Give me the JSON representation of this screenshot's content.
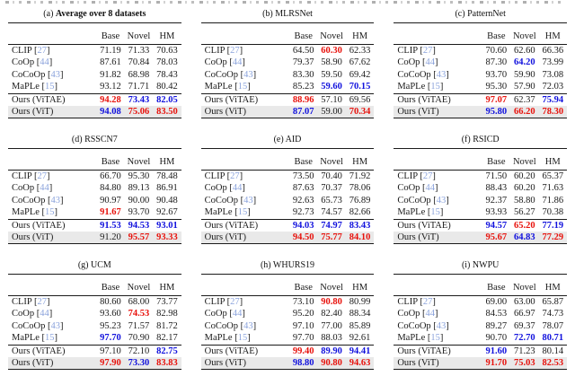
{
  "colors": {
    "best": "#e8120c",
    "second": "#1111dd",
    "citation": "#8ba3dc",
    "highlight_bg": "#e9e9e9",
    "rule": "#1b1b1b"
  },
  "columns": [
    "Base",
    "Novel",
    "HM"
  ],
  "tables": [
    {
      "label": "(a)",
      "title": "Average over 8 datasets",
      "bold_title": true,
      "rows": [
        {
          "m": "CLIP",
          "cite": "27",
          "v": [
            "71.19",
            "71.33",
            "70.63"
          ],
          "c": [
            null,
            null,
            null
          ]
        },
        {
          "m": "CoOp",
          "cite": "44",
          "v": [
            "87.61",
            "70.84",
            "78.03"
          ],
          "c": [
            null,
            null,
            null
          ]
        },
        {
          "m": "CoCoOp",
          "cite": "43",
          "v": [
            "91.82",
            "68.98",
            "78.43"
          ],
          "c": [
            null,
            null,
            null
          ]
        },
        {
          "m": "MaPLe",
          "cite": "15",
          "v": [
            "93.12",
            "71.71",
            "80.42"
          ],
          "c": [
            null,
            null,
            null
          ]
        },
        {
          "m": "Ours (ViTAE)",
          "v": [
            "94.28",
            "73.43",
            "82.05"
          ],
          "c": [
            "r",
            "b",
            "b"
          ],
          "sep": true
        },
        {
          "m": "Ours (ViT)",
          "v": [
            "94.08",
            "75.06",
            "83.50"
          ],
          "c": [
            "b",
            "r",
            "r"
          ],
          "hl": true
        }
      ]
    },
    {
      "label": "(b)",
      "title": "MLRSNet",
      "rows": [
        {
          "m": "CLIP",
          "cite": "27",
          "v": [
            "64.50",
            "60.30",
            "62.33"
          ],
          "c": [
            null,
            "r",
            null
          ]
        },
        {
          "m": "CoOp",
          "cite": "44",
          "v": [
            "79.37",
            "58.90",
            "67.62"
          ],
          "c": [
            null,
            null,
            null
          ]
        },
        {
          "m": "CoCoOp",
          "cite": "43",
          "v": [
            "83.30",
            "59.50",
            "69.42"
          ],
          "c": [
            null,
            null,
            null
          ]
        },
        {
          "m": "MaPLe",
          "cite": "15",
          "v": [
            "85.23",
            "59.60",
            "70.15"
          ],
          "c": [
            null,
            "b",
            "b"
          ]
        },
        {
          "m": "Ours (ViTAE)",
          "v": [
            "88.96",
            "57.10",
            "69.56"
          ],
          "c": [
            "r",
            null,
            null
          ],
          "sep": true
        },
        {
          "m": "Ours (ViT)",
          "v": [
            "87.07",
            "59.00",
            "70.34"
          ],
          "c": [
            "b",
            null,
            "r"
          ],
          "hl": true
        }
      ]
    },
    {
      "label": "(c)",
      "title": "PatternNet",
      "rows": [
        {
          "m": "CLIP",
          "cite": "27",
          "v": [
            "70.60",
            "62.60",
            "66.36"
          ],
          "c": [
            null,
            null,
            null
          ]
        },
        {
          "m": "CoOp",
          "cite": "44",
          "v": [
            "87.30",
            "64.20",
            "73.99"
          ],
          "c": [
            null,
            "b",
            null
          ]
        },
        {
          "m": "CoCoOp",
          "cite": "43",
          "v": [
            "93.70",
            "59.90",
            "73.08"
          ],
          "c": [
            null,
            null,
            null
          ]
        },
        {
          "m": "MaPLe",
          "cite": "15",
          "v": [
            "95.30",
            "57.90",
            "72.03"
          ],
          "c": [
            null,
            null,
            null
          ]
        },
        {
          "m": "Ours (ViTAE)",
          "v": [
            "97.07",
            "62.37",
            "75.94"
          ],
          "c": [
            "r",
            null,
            "b"
          ],
          "sep": true
        },
        {
          "m": "Ours (ViT)",
          "v": [
            "95.80",
            "66.20",
            "78.30"
          ],
          "c": [
            "b",
            "r",
            "r"
          ],
          "hl": true
        }
      ]
    },
    {
      "label": "(d)",
      "title": "RSSCN7",
      "rows": [
        {
          "m": "CLIP",
          "cite": "27",
          "v": [
            "66.70",
            "95.30",
            "78.48"
          ],
          "c": [
            null,
            null,
            null
          ]
        },
        {
          "m": "CoOp",
          "cite": "44",
          "v": [
            "84.80",
            "89.13",
            "86.91"
          ],
          "c": [
            null,
            null,
            null
          ]
        },
        {
          "m": "CoCoOp",
          "cite": "43",
          "v": [
            "90.97",
            "90.00",
            "90.48"
          ],
          "c": [
            null,
            null,
            null
          ]
        },
        {
          "m": "MaPLe",
          "cite": "15",
          "v": [
            "91.67",
            "93.70",
            "92.67"
          ],
          "c": [
            "r",
            null,
            null
          ]
        },
        {
          "m": "Ours (ViTAE)",
          "v": [
            "91.53",
            "94.53",
            "93.01"
          ],
          "c": [
            "b",
            "b",
            "b"
          ],
          "sep": true
        },
        {
          "m": "Ours (ViT)",
          "v": [
            "91.20",
            "95.57",
            "93.33"
          ],
          "c": [
            null,
            "r",
            "r"
          ],
          "hl": true
        }
      ]
    },
    {
      "label": "(e)",
      "title": "AID",
      "rows": [
        {
          "m": "CLIP",
          "cite": "27",
          "v": [
            "73.50",
            "70.40",
            "71.92"
          ],
          "c": [
            null,
            null,
            null
          ]
        },
        {
          "m": "CoOp",
          "cite": "44",
          "v": [
            "87.63",
            "70.37",
            "78.06"
          ],
          "c": [
            null,
            null,
            null
          ]
        },
        {
          "m": "CoCoOp",
          "cite": "43",
          "v": [
            "92.63",
            "65.73",
            "76.89"
          ],
          "c": [
            null,
            null,
            null
          ]
        },
        {
          "m": "MaPLe",
          "cite": "15",
          "v": [
            "92.73",
            "74.57",
            "82.66"
          ],
          "c": [
            null,
            null,
            null
          ]
        },
        {
          "m": "Ours (ViTAE)",
          "v": [
            "94.03",
            "74.97",
            "83.43"
          ],
          "c": [
            "b",
            "b",
            "b"
          ],
          "sep": true
        },
        {
          "m": "Ours (ViT)",
          "v": [
            "94.50",
            "75.77",
            "84.10"
          ],
          "c": [
            "r",
            "r",
            "r"
          ],
          "hl": true
        }
      ]
    },
    {
      "label": "(f)",
      "title": "RSICD",
      "rows": [
        {
          "m": "CLIP",
          "cite": "27",
          "v": [
            "71.50",
            "60.20",
            "65.37"
          ],
          "c": [
            null,
            null,
            null
          ]
        },
        {
          "m": "CoOp",
          "cite": "44",
          "v": [
            "88.43",
            "60.20",
            "71.63"
          ],
          "c": [
            null,
            null,
            null
          ]
        },
        {
          "m": "CoCoOp",
          "cite": "43",
          "v": [
            "92.37",
            "58.80",
            "71.86"
          ],
          "c": [
            null,
            null,
            null
          ]
        },
        {
          "m": "MaPLe",
          "cite": "15",
          "v": [
            "93.93",
            "56.27",
            "70.38"
          ],
          "c": [
            null,
            null,
            null
          ]
        },
        {
          "m": "Ours (ViTAE)",
          "v": [
            "94.57",
            "65.20",
            "77.19"
          ],
          "c": [
            "b",
            "r",
            "b"
          ],
          "sep": true
        },
        {
          "m": "Ours (ViT)",
          "v": [
            "95.67",
            "64.83",
            "77.29"
          ],
          "c": [
            "r",
            "b",
            "r"
          ],
          "hl": true
        }
      ]
    },
    {
      "label": "(g)",
      "title": "UCM",
      "rows": [
        {
          "m": "CLIP",
          "cite": "27",
          "v": [
            "80.60",
            "68.00",
            "73.77"
          ],
          "c": [
            null,
            null,
            null
          ]
        },
        {
          "m": "CoOp",
          "cite": "44",
          "v": [
            "93.60",
            "74.53",
            "82.98"
          ],
          "c": [
            null,
            "r",
            null
          ]
        },
        {
          "m": "CoCoOp",
          "cite": "43",
          "v": [
            "95.23",
            "71.57",
            "81.72"
          ],
          "c": [
            null,
            null,
            null
          ]
        },
        {
          "m": "MaPLe",
          "cite": "15",
          "v": [
            "97.70",
            "70.90",
            "82.17"
          ],
          "c": [
            "b",
            null,
            null
          ]
        },
        {
          "m": "Ours (ViTAE)",
          "v": [
            "97.10",
            "72.10",
            "82.75"
          ],
          "c": [
            null,
            null,
            "b"
          ],
          "sep": true
        },
        {
          "m": "Ours (ViT)",
          "v": [
            "97.90",
            "73.30",
            "83.83"
          ],
          "c": [
            "r",
            "b",
            "r"
          ],
          "hl": true
        }
      ]
    },
    {
      "label": "(h)",
      "title": "WHURS19",
      "rows": [
        {
          "m": "CLIP",
          "cite": "27",
          "v": [
            "73.10",
            "90.80",
            "80.99"
          ],
          "c": [
            null,
            "r",
            null
          ]
        },
        {
          "m": "CoOp",
          "cite": "44",
          "v": [
            "95.20",
            "82.40",
            "88.34"
          ],
          "c": [
            null,
            null,
            null
          ]
        },
        {
          "m": "CoCoOp",
          "cite": "43",
          "v": [
            "97.10",
            "77.00",
            "85.89"
          ],
          "c": [
            null,
            null,
            null
          ]
        },
        {
          "m": "MaPLe",
          "cite": "15",
          "v": [
            "97.70",
            "88.03",
            "92.61"
          ],
          "c": [
            null,
            null,
            null
          ]
        },
        {
          "m": "Ours (ViTAE)",
          "v": [
            "99.40",
            "89.90",
            "94.41"
          ],
          "c": [
            "r",
            "b",
            "b"
          ],
          "sep": true
        },
        {
          "m": "Ours (ViT)",
          "v": [
            "98.80",
            "90.80",
            "94.63"
          ],
          "c": [
            "b",
            "r",
            "r"
          ],
          "hl": true
        }
      ]
    },
    {
      "label": "(i)",
      "title": "NWPU",
      "rows": [
        {
          "m": "CLIP",
          "cite": "27",
          "v": [
            "69.00",
            "63.00",
            "65.87"
          ],
          "c": [
            null,
            null,
            null
          ]
        },
        {
          "m": "CoOp",
          "cite": "44",
          "v": [
            "84.53",
            "66.97",
            "74.73"
          ],
          "c": [
            null,
            null,
            null
          ]
        },
        {
          "m": "CoCoOp",
          "cite": "43",
          "v": [
            "89.27",
            "69.37",
            "78.07"
          ],
          "c": [
            null,
            null,
            null
          ]
        },
        {
          "m": "MaPLe",
          "cite": "15",
          "v": [
            "90.70",
            "72.70",
            "80.71"
          ],
          "c": [
            null,
            "b",
            "b"
          ]
        },
        {
          "m": "Ours (ViTAE)",
          "v": [
            "91.60",
            "71.23",
            "80.14"
          ],
          "c": [
            "b",
            null,
            null
          ],
          "sep": true
        },
        {
          "m": "Ours (ViT)",
          "v": [
            "91.70",
            "75.03",
            "82.53"
          ],
          "c": [
            "r",
            "r",
            "r"
          ],
          "hl": true
        }
      ]
    }
  ]
}
